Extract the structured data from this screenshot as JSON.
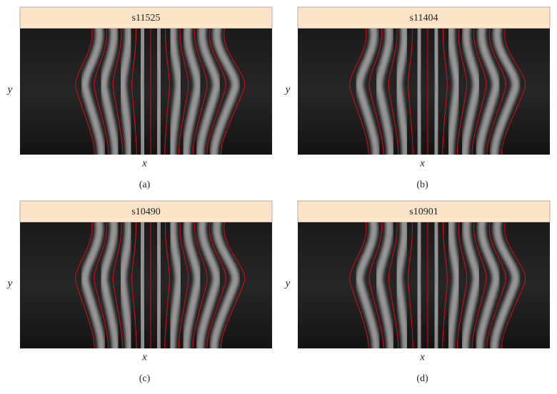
{
  "panels": [
    {
      "title": "s11525",
      "x_label": "x",
      "y_label": "y",
      "caption": "(a)"
    },
    {
      "title": "s11404",
      "x_label": "x",
      "y_label": "y",
      "caption": "(b)"
    },
    {
      "title": "s10490",
      "x_label": "x",
      "y_label": "y",
      "caption": "(c)"
    },
    {
      "title": "s10901",
      "x_label": "x",
      "y_label": "y",
      "caption": "(d)"
    }
  ]
}
